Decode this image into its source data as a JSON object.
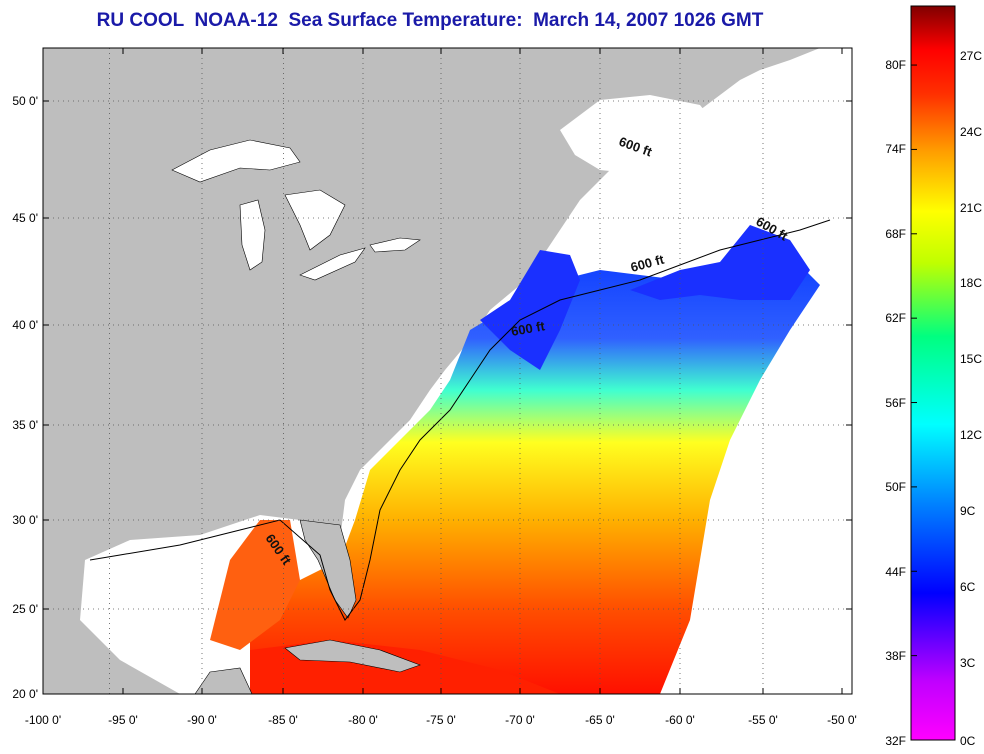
{
  "title": "RU COOL  NOAA-12  Sea Surface Temperature:  March 14, 2007 1026 GMT",
  "map": {
    "lon_range": [
      -100,
      -50
    ],
    "lat_range": [
      20,
      52.5
    ],
    "lon_ticks": [
      "-100 0'",
      "-95 0'",
      "-90 0'",
      "-85 0'",
      "-80 0'",
      "-75 0'",
      "-70 0'",
      "-65 0'",
      "-60 0'",
      "-55 0'",
      "-50 0'"
    ],
    "lat_ticks": [
      "20 0'",
      "25 0'",
      "30 0'",
      "35 0'",
      "40 0'",
      "45 0'",
      "50 0'"
    ],
    "contour_label": "600 ft",
    "land_color": "#bebebe",
    "cloud_color": "#ffffff"
  },
  "colorbar": {
    "fahrenheit_labels": [
      "32F",
      "38F",
      "44F",
      "50F",
      "56F",
      "62F",
      "68F",
      "74F",
      "80F"
    ],
    "celsius_labels": [
      "0C",
      "3C",
      "6C",
      "9C",
      "12C",
      "15C",
      "18C",
      "21C",
      "24C",
      "27C"
    ],
    "colors": [
      "#ff00ff",
      "#8000ff",
      "#0000ff",
      "#0080ff",
      "#00ffff",
      "#00ff80",
      "#ffff00",
      "#ff8000",
      "#ff0000",
      "#800000"
    ]
  }
}
